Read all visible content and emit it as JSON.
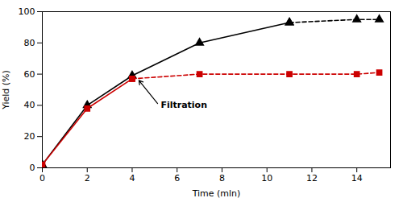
{
  "chart_data": {
    "type": "line",
    "xlabel": "Time (mln)",
    "ylabel": "Yield (%)",
    "xlim": [
      0,
      15.5
    ],
    "ylim": [
      0,
      100
    ],
    "xticks": [
      0,
      2,
      4,
      6,
      8,
      10,
      12,
      14
    ],
    "yticks": [
      0,
      20,
      40,
      60,
      80,
      100
    ],
    "grid": false,
    "series": [
      {
        "color": "#000000",
        "marker": "triangle",
        "line_style": "solid",
        "x": [
          0,
          2,
          4,
          7,
          11
        ],
        "values": [
          2,
          40,
          59,
          80,
          93
        ]
      },
      {
        "color": "#000000",
        "marker": "triangle",
        "line_style": "dashed",
        "x": [
          11,
          14,
          15
        ],
        "values": [
          93,
          95,
          95
        ]
      },
      {
        "color": "#cc0000",
        "marker": "square",
        "line_style": "solid",
        "x": [
          0,
          2,
          4
        ],
        "values": [
          2,
          38,
          57
        ]
      },
      {
        "color": "#cc0000",
        "marker": "square",
        "line_style": "dashed",
        "x": [
          4,
          7,
          11,
          14,
          15
        ],
        "values": [
          57,
          60,
          60,
          60,
          61
        ]
      }
    ],
    "annotations": [
      {
        "text": "Filtration",
        "x": 5.2,
        "y": 40,
        "arrow_x": 4.3,
        "arrow_y": 56
      }
    ]
  }
}
